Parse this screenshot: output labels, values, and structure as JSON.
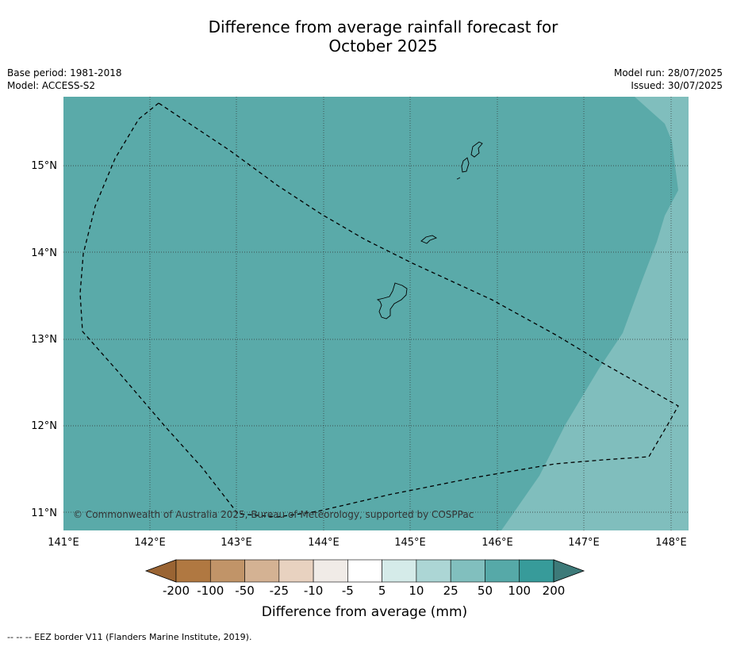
{
  "title_line1": "Difference from average rainfall forecast for",
  "title_line2": "October 2025",
  "meta_left": {
    "base_period": "Base period: 1981-2018",
    "model": "Model: ACCESS-S2"
  },
  "meta_right": {
    "model_run": "Model run: 28/07/2025",
    "issued": "Issued: 30/07/2025"
  },
  "map": {
    "lon_labels": [
      "141°E",
      "142°E",
      "143°E",
      "144°E",
      "145°E",
      "146°E",
      "147°E",
      "148°E"
    ],
    "lat_labels": [
      "15°N",
      "14°N",
      "13°N",
      "12°N",
      "11°N"
    ],
    "copyright": "© Commonwealth of Australia 2025, Bureau of Meteorology, supported by COSPPac",
    "extent": {
      "lon": [
        141.0,
        148.2
      ],
      "lat": [
        10.8,
        15.8
      ]
    },
    "colors": {
      "ocean_50_100": "#5aaaa9",
      "ocean_25_50": "#80bebd"
    }
  },
  "colorbar": {
    "title": "Difference from average (mm)",
    "tick_labels": [
      "-200",
      "-100",
      "-50",
      "-25",
      "-10",
      "-5",
      "5",
      "10",
      "25",
      "50",
      "100",
      "200"
    ],
    "colors": [
      "#9a6433",
      "#b07841",
      "#c19468",
      "#d4b293",
      "#e8d2c0",
      "#f0ebe7",
      "#ffffff",
      "#d5ebe9",
      "#acd6d5",
      "#81bfbe",
      "#56a9a8",
      "#379b9a",
      "#3d7a79"
    ]
  },
  "footnote": "--  --  -- EEZ border V11 (Flanders Marine Institute, 2019)."
}
